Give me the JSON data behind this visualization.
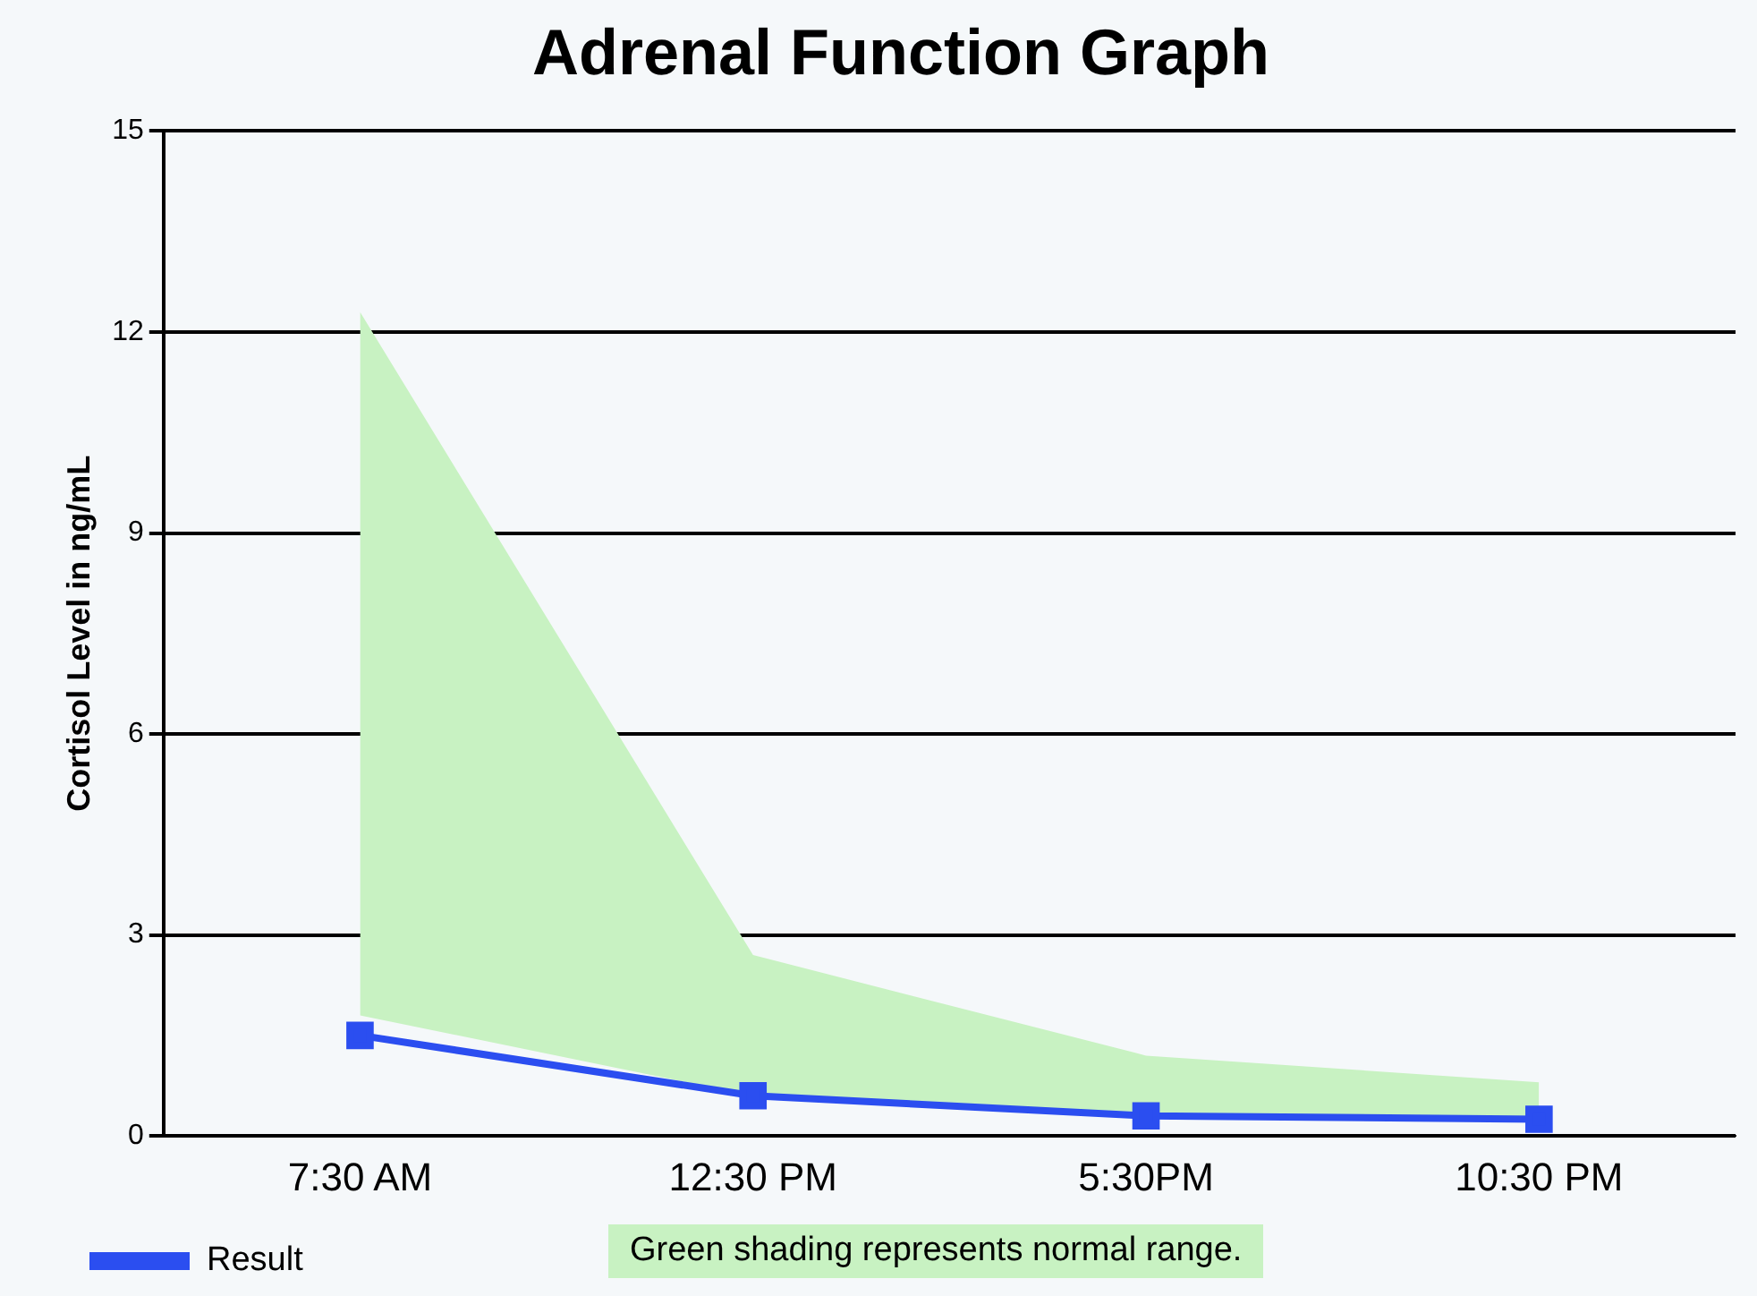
{
  "chart_data": {
    "type": "line",
    "title": "Adrenal Function Graph",
    "ylabel": "Cortisol Level in ng/mL",
    "categories": [
      "7:30 AM",
      "12:30 PM",
      "5:30PM",
      "10:30 PM"
    ],
    "series": [
      {
        "type": "area",
        "color": "#c8f2c2",
        "values": [
          null,
          null,
          null,
          null
        ],
        "lower": [
          1.8,
          0.6,
          0.3,
          0.2
        ],
        "upper": [
          12.3,
          2.7,
          1.2,
          0.8
        ]
      },
      {
        "name": "Result",
        "color": "#2b4ef0",
        "values": [
          1.5,
          0.6,
          0.3,
          0.25
        ]
      }
    ],
    "ylim": [
      0,
      15
    ],
    "yticks": [
      0,
      3,
      6,
      9,
      12,
      15
    ],
    "grid": "y",
    "legend": "bottom left",
    "marker": "square",
    "line_style": "solid",
    "annotations": [
      "Green shading represents normal range."
    ]
  }
}
